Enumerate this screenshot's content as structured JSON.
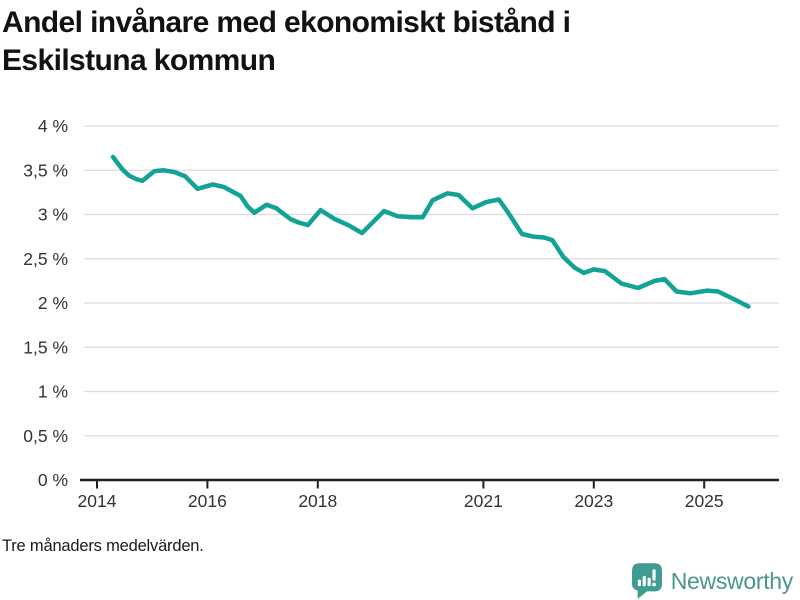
{
  "header": {
    "title_line1": "Andel invånare med ekonomiskt bistånd i",
    "title_line2": "Eskilstuna kommun"
  },
  "note": "Tre månaders medelvärden.",
  "logo": {
    "text": "Newsworthy",
    "icon": "speech-bubble-barchart-exclamation",
    "icon_color": "#3e9c92",
    "text_color": "#4b968c"
  },
  "chart_data": {
    "type": "line",
    "title": "Andel invånare med ekonomiskt bistånd i Eskilstuna kommun",
    "subtitle_note": "Tre månaders medelvärden.",
    "xlabel": "",
    "ylabel": "",
    "ylim": [
      0,
      4
    ],
    "xlim": [
      2013.7,
      2026.4
    ],
    "grid": "horizontal",
    "legend": "none",
    "line_color": "#12a296",
    "grid_color": "#dcdcdc",
    "axis_color": "#222222",
    "tick_text_color": "#333333",
    "y_ticks": [
      {
        "value": 0,
        "label": "0 %"
      },
      {
        "value": 0.5,
        "label": "0,5 %"
      },
      {
        "value": 1,
        "label": "1 %"
      },
      {
        "value": 1.5,
        "label": "1,5 %"
      },
      {
        "value": 2,
        "label": "2 %"
      },
      {
        "value": 2.5,
        "label": "2,5 %"
      },
      {
        "value": 3,
        "label": "3 %"
      },
      {
        "value": 3.5,
        "label": "3,5 %"
      },
      {
        "value": 4,
        "label": "4 %"
      }
    ],
    "x_ticks": [
      {
        "value": 2014,
        "label": "2014"
      },
      {
        "value": 2016,
        "label": "2016"
      },
      {
        "value": 2018,
        "label": "2018"
      },
      {
        "value": 2021,
        "label": "2021"
      },
      {
        "value": 2023,
        "label": "2023"
      },
      {
        "value": 2025,
        "label": "2025"
      }
    ],
    "series": [
      {
        "name": "Andel invånare med ekonomiskt bistånd",
        "points": [
          [
            2014.29,
            3.65
          ],
          [
            2014.46,
            3.51
          ],
          [
            2014.58,
            3.44
          ],
          [
            2014.71,
            3.4
          ],
          [
            2014.82,
            3.38
          ],
          [
            2015.04,
            3.49
          ],
          [
            2015.21,
            3.5
          ],
          [
            2015.4,
            3.48
          ],
          [
            2015.6,
            3.43
          ],
          [
            2015.82,
            3.29
          ],
          [
            2016.1,
            3.34
          ],
          [
            2016.3,
            3.31
          ],
          [
            2016.6,
            3.21
          ],
          [
            2016.73,
            3.09
          ],
          [
            2016.85,
            3.02
          ],
          [
            2017.07,
            3.11
          ],
          [
            2017.25,
            3.07
          ],
          [
            2017.5,
            2.95
          ],
          [
            2017.65,
            2.91
          ],
          [
            2017.82,
            2.88
          ],
          [
            2018.05,
            3.05
          ],
          [
            2018.3,
            2.95
          ],
          [
            2018.55,
            2.88
          ],
          [
            2018.8,
            2.79
          ],
          [
            2019.2,
            3.04
          ],
          [
            2019.45,
            2.98
          ],
          [
            2019.7,
            2.97
          ],
          [
            2019.9,
            2.97
          ],
          [
            2020.08,
            3.16
          ],
          [
            2020.35,
            3.24
          ],
          [
            2020.55,
            3.22
          ],
          [
            2020.8,
            3.07
          ],
          [
            2021.05,
            3.14
          ],
          [
            2021.28,
            3.17
          ],
          [
            2021.45,
            3.02
          ],
          [
            2021.7,
            2.78
          ],
          [
            2021.9,
            2.75
          ],
          [
            2022.1,
            2.74
          ],
          [
            2022.25,
            2.71
          ],
          [
            2022.45,
            2.52
          ],
          [
            2022.65,
            2.4
          ],
          [
            2022.82,
            2.34
          ],
          [
            2023.0,
            2.38
          ],
          [
            2023.2,
            2.36
          ],
          [
            2023.5,
            2.22
          ],
          [
            2023.8,
            2.17
          ],
          [
            2024.1,
            2.25
          ],
          [
            2024.28,
            2.27
          ],
          [
            2024.5,
            2.13
          ],
          [
            2024.75,
            2.11
          ],
          [
            2025.05,
            2.14
          ],
          [
            2025.25,
            2.13
          ],
          [
            2025.55,
            2.04
          ],
          [
            2025.8,
            1.96
          ]
        ]
      }
    ]
  }
}
